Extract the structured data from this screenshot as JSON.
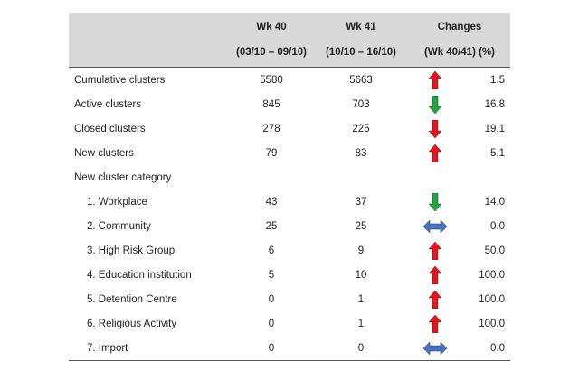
{
  "header": {
    "col_week40": "Wk 40",
    "col_week40_dates": "(03/10 – 09/10)",
    "col_week41": "Wk 41",
    "col_week41_dates": "(10/10 – 16/10)",
    "col_changes": "Changes",
    "col_changes_sub": "(Wk 40/41) (%)"
  },
  "colors": {
    "up": "#e8141c",
    "down": "#1fa640",
    "same": "#4472c4",
    "header_bg": "#d9d9d9"
  },
  "rows": [
    {
      "label": "Cumulative clusters",
      "wk40": "5580",
      "wk41": "5663",
      "direction": "up",
      "change": "1.5"
    },
    {
      "label": "Active clusters",
      "wk40": "845",
      "wk41": "703",
      "direction": "down-green",
      "change": "16.8"
    },
    {
      "label": "Closed clusters",
      "wk40": "278",
      "wk41": "225",
      "direction": "down-red",
      "change": "19.1"
    },
    {
      "label": "New clusters",
      "wk40": "79",
      "wk41": "83",
      "direction": "up",
      "change": "5.1"
    },
    {
      "label": "New cluster category",
      "wk40": "",
      "wk41": "",
      "direction": "none",
      "change": ""
    },
    {
      "label": "1. Workplace",
      "wk40": "43",
      "wk41": "37",
      "direction": "down-green",
      "change": "14.0",
      "sub": true
    },
    {
      "label": "2. Community",
      "wk40": "25",
      "wk41": "25",
      "direction": "same",
      "change": "0.0",
      "sub": true
    },
    {
      "label": "3. High Risk Group",
      "wk40": "6",
      "wk41": "9",
      "direction": "up",
      "change": "50.0",
      "sub": true
    },
    {
      "label": "4. Education institution",
      "wk40": "5",
      "wk41": "10",
      "direction": "up",
      "change": "100.0",
      "sub": true
    },
    {
      "label": "5. Detention Centre",
      "wk40": "0",
      "wk41": "1",
      "direction": "up",
      "change": "100.0",
      "sub": true
    },
    {
      "label": "6. Religious Activity",
      "wk40": "0",
      "wk41": "1",
      "direction": "up",
      "change": "100.0",
      "sub": true
    },
    {
      "label": "7. Import",
      "wk40": "0",
      "wk41": "0",
      "direction": "same",
      "change": "0.0",
      "sub": true
    }
  ]
}
